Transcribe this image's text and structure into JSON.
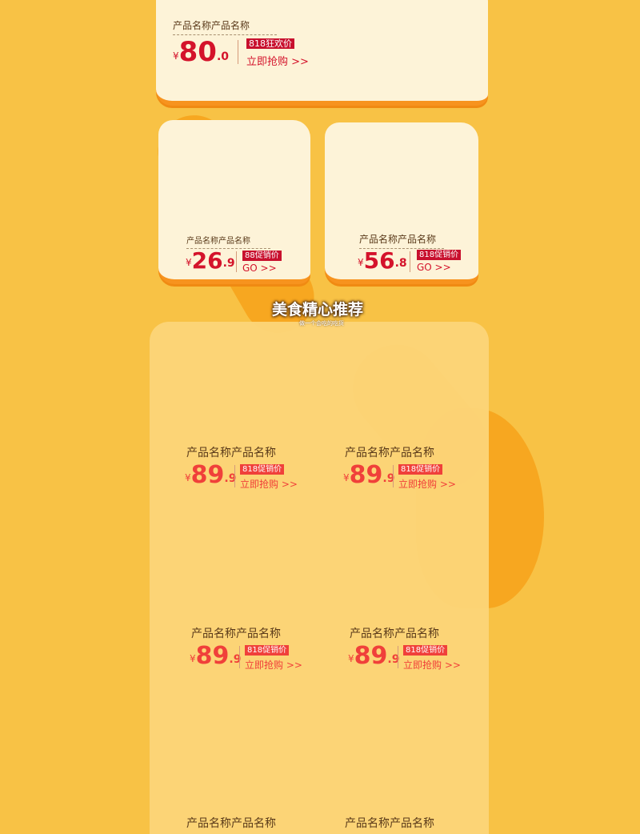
{
  "featured": {
    "name": "产品名称产品名称",
    "price_int": "80",
    "price_dec": ".0",
    "tag": "818狂欢价",
    "cta": "立即抢购 >>"
  },
  "small_cards": [
    {
      "name": "产品名称产品名称",
      "price_int": "26",
      "price_dec": ".9",
      "tag": "88促销价",
      "cta": "GO >>"
    },
    {
      "name": "产品名称产品名称",
      "price_int": "56",
      "price_dec": ".8",
      "tag": "818促销价",
      "cta": "GO >>"
    }
  ],
  "section": {
    "title": "美食精心推荐",
    "subtitle": "做一个会吃的吃货"
  },
  "currency": "¥",
  "grid": [
    {
      "name": "产品名称产品名称",
      "price_int": "89",
      "price_dec": ".9",
      "tag": "818促销价",
      "cta": "立即抢购 >>"
    },
    {
      "name": "产品名称产品名称",
      "price_int": "89",
      "price_dec": ".9",
      "tag": "818促销价",
      "cta": "立即抢购 >>"
    },
    {
      "name": "产品名称产品名称",
      "price_int": "89",
      "price_dec": ".9",
      "tag": "818促销价",
      "cta": "立即抢购 >>"
    },
    {
      "name": "产品名称产品名称",
      "price_int": "89",
      "price_dec": ".9",
      "tag": "818促销价",
      "cta": "立即抢购 >>"
    },
    {
      "name": "产品名称产品名称"
    },
    {
      "name": "产品名称产品名称"
    }
  ],
  "colors": {
    "background": "#f8c245",
    "card": "#fdf3d8",
    "price_red": "#d4132b",
    "grid_red": "#f0403a",
    "orange": "#f7931e"
  }
}
